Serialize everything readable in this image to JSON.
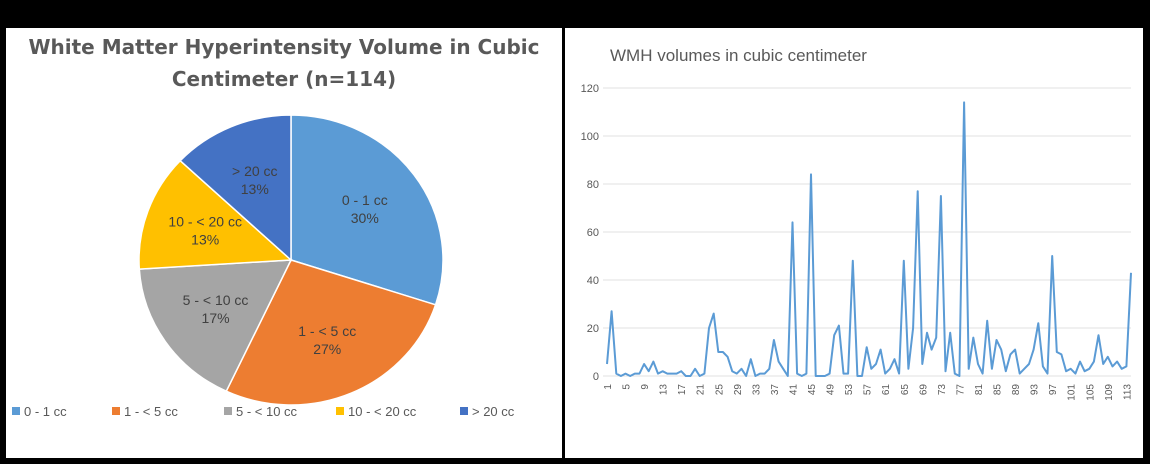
{
  "chart_data": [
    {
      "type": "pie",
      "title_line1": "White Matter Hyperintensity Volume in Cubic",
      "title_line2": "Centimeter (n=114)",
      "legend_position": "bottom",
      "slices": [
        {
          "label": "0 - 1 cc",
          "value": 30,
          "percent_label": "30%",
          "color": "#5b9bd5"
        },
        {
          "label": "1 - < 5 cc",
          "value": 27,
          "percent_label": "27%",
          "color": "#ed7d31"
        },
        {
          "label": "5 - < 10 cc",
          "value": 17,
          "percent_label": "17%",
          "color": "#a5a5a5"
        },
        {
          "label": "10 - < 20 cc",
          "value": 13,
          "percent_label": "13%",
          "color": "#ffc000"
        },
        {
          "label": "> 20 cc",
          "value": 13,
          "percent_label": "13%",
          "color": "#4472c4"
        }
      ]
    },
    {
      "type": "line",
      "title": "WMH volumes in cubic centimeter",
      "series_color": "#5b9bd5",
      "ylim": [
        0,
        120
      ],
      "yticks": [
        0,
        20,
        40,
        60,
        80,
        100,
        120
      ],
      "xticks": [
        1,
        5,
        9,
        13,
        17,
        21,
        25,
        29,
        33,
        37,
        41,
        45,
        49,
        53,
        57,
        61,
        65,
        69,
        73,
        77,
        81,
        85,
        89,
        93,
        97,
        101,
        105,
        109,
        113
      ],
      "grid": true,
      "x": [
        1,
        2,
        3,
        4,
        5,
        6,
        7,
        8,
        9,
        10,
        11,
        12,
        13,
        14,
        15,
        16,
        17,
        18,
        19,
        20,
        21,
        22,
        23,
        24,
        25,
        26,
        27,
        28,
        29,
        30,
        31,
        32,
        33,
        34,
        35,
        36,
        37,
        38,
        39,
        40,
        41,
        42,
        43,
        44,
        45,
        46,
        47,
        48,
        49,
        50,
        51,
        52,
        53,
        54,
        55,
        56,
        57,
        58,
        59,
        60,
        61,
        62,
        63,
        64,
        65,
        66,
        67,
        68,
        69,
        70,
        71,
        72,
        73,
        74,
        75,
        76,
        77,
        78,
        79,
        80,
        81,
        82,
        83,
        84,
        85,
        86,
        87,
        88,
        89,
        90,
        91,
        92,
        93,
        94,
        95,
        96,
        97,
        98,
        99,
        100,
        101,
        102,
        103,
        104,
        105,
        106,
        107,
        108,
        109,
        110,
        111,
        112,
        113,
        114
      ],
      "y": [
        5,
        27,
        1,
        0,
        1,
        0,
        1,
        1,
        5,
        2,
        6,
        1,
        2,
        1,
        1,
        1,
        2,
        0,
        0,
        3,
        0,
        1,
        20,
        26,
        10,
        10,
        8,
        2,
        1,
        3,
        0,
        7,
        0,
        1,
        1,
        3,
        15,
        6,
        3,
        0,
        64,
        1,
        0,
        1,
        84,
        0,
        0,
        0,
        1,
        17,
        21,
        1,
        1,
        48,
        0,
        0,
        12,
        3,
        5,
        11,
        1,
        3,
        7,
        1,
        48,
        3,
        20,
        77,
        5,
        18,
        11,
        16,
        75,
        2,
        18,
        1,
        0,
        114,
        3,
        16,
        5,
        1,
        23,
        3,
        15,
        11,
        2,
        9,
        11,
        1,
        3,
        5,
        11,
        22,
        4,
        1,
        50,
        10,
        9,
        2,
        3,
        1,
        6,
        2,
        3,
        6,
        17,
        5,
        8,
        4,
        6,
        3,
        4,
        43
      ]
    }
  ]
}
